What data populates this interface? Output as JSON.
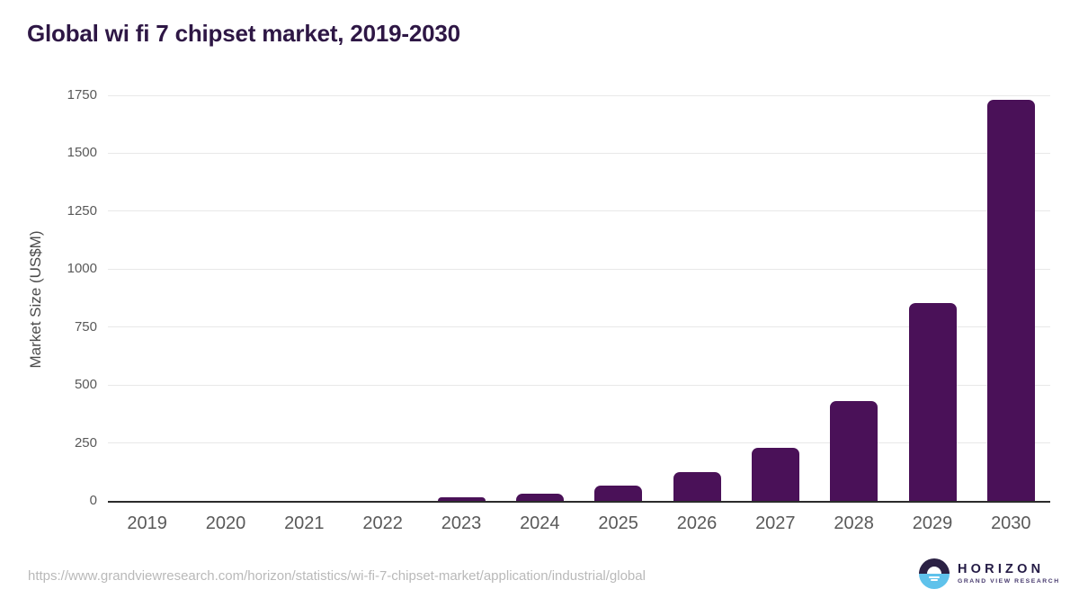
{
  "title": "Global wi fi 7 chipset market, 2019-2030",
  "chart_data": {
    "type": "bar",
    "title": "Global wi fi 7 chipset market, 2019-2030",
    "categories": [
      "2019",
      "2020",
      "2021",
      "2022",
      "2023",
      "2024",
      "2025",
      "2026",
      "2027",
      "2028",
      "2029",
      "2030"
    ],
    "values": [
      0,
      0,
      0,
      0,
      15,
      33,
      68,
      123,
      228,
      430,
      855,
      1730
    ],
    "xlabel": "",
    "ylabel": "Market Size (US$M)",
    "ylim": [
      0,
      1750
    ],
    "ytick_step": 250,
    "grid": "horizontal-only",
    "legend": "none",
    "bar_color": "#4a1158"
  },
  "footer": {
    "source_url": "https://www.grandviewresearch.com/horizon/statistics/wi-fi-7-chipset-market/application/industrial/global",
    "logo": {
      "name": "HORIZON",
      "subtitle": "GRAND VIEW RESEARCH"
    }
  },
  "colors": {
    "title_text": "#2e1745",
    "bar": "#4a1158",
    "gridline": "#e8e8e8",
    "axis_line": "#2b2b2b",
    "tick_label": "#595959",
    "axis_title": "#4b4b4b",
    "url_text": "#b9b9b9",
    "logo_dark": "#2b2144",
    "logo_blue": "#5fc2eb"
  }
}
